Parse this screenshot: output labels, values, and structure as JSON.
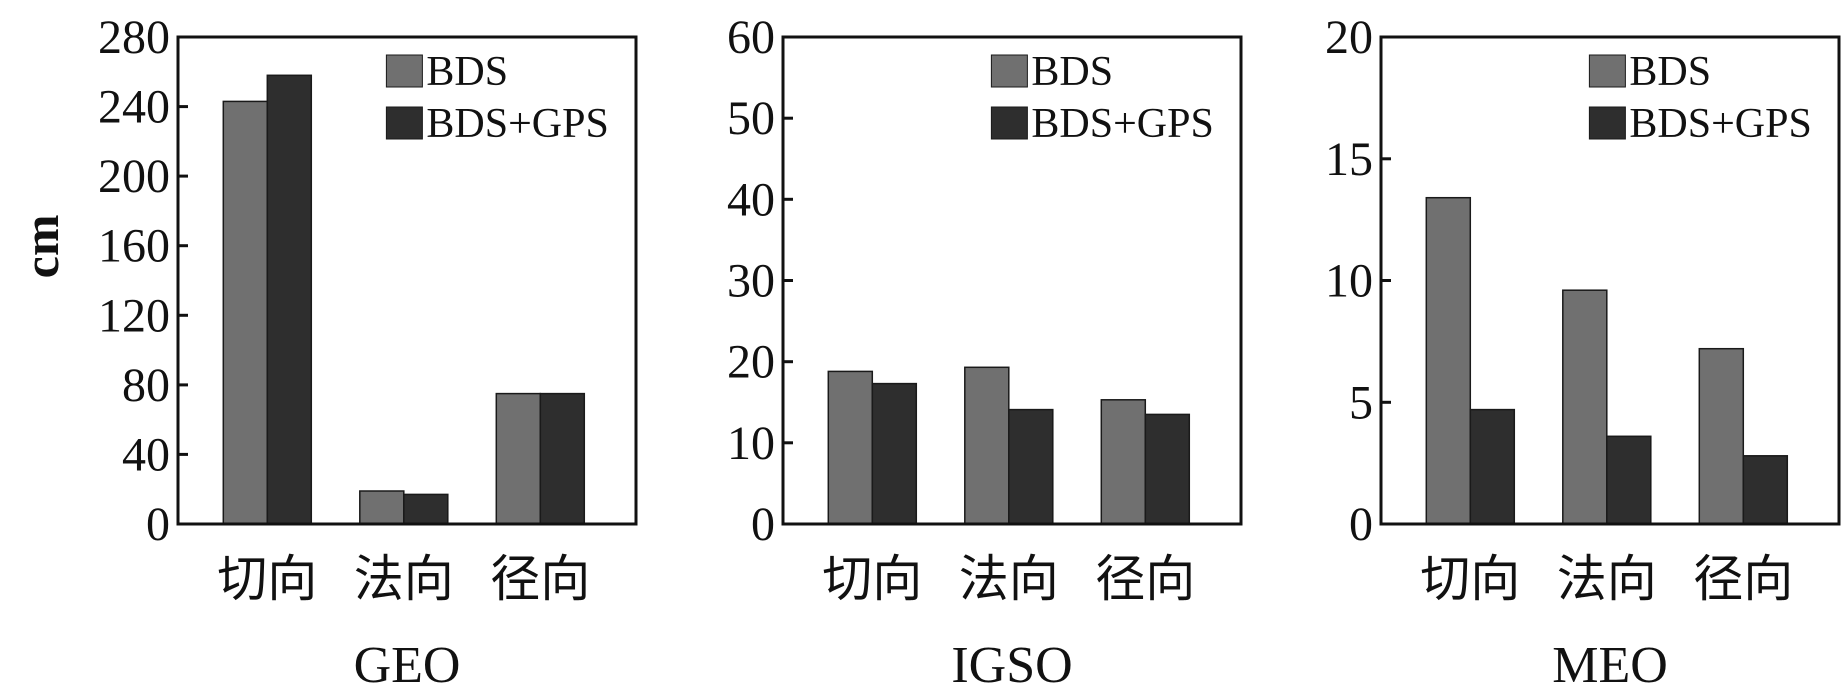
{
  "chart_data": [
    {
      "type": "bar",
      "title": "GEO",
      "xlabel": "GEO",
      "ylabel": "cm",
      "categories": [
        "切向",
        "法向",
        "径向"
      ],
      "series": [
        {
          "name": "BDS",
          "values": [
            243,
            19,
            75
          ],
          "color": "#707070"
        },
        {
          "name": "BDS+GPS",
          "values": [
            258,
            17,
            75
          ],
          "color": "#2e2e2e"
        }
      ],
      "ylim": [
        0,
        280
      ],
      "yticks": [
        "0",
        "40",
        "80",
        "120",
        "160",
        "200",
        "240",
        "280"
      ],
      "legend": "top-right",
      "grid": false
    },
    {
      "type": "bar",
      "title": "IGSO",
      "xlabel": "IGSO",
      "ylabel": "",
      "categories": [
        "切向",
        "法向",
        "径向"
      ],
      "series": [
        {
          "name": "BDS",
          "values": [
            18.8,
            19.3,
            15.3
          ],
          "color": "#707070"
        },
        {
          "name": "BDS+GPS",
          "values": [
            17.3,
            14.1,
            13.5
          ],
          "color": "#2e2e2e"
        }
      ],
      "ylim": [
        0,
        60
      ],
      "yticks": [
        "0",
        "10",
        "20",
        "30",
        "40",
        "50",
        "60"
      ],
      "legend": "top-right",
      "grid": false
    },
    {
      "type": "bar",
      "title": "MEO",
      "xlabel": "MEO",
      "ylabel": "",
      "categories": [
        "切向",
        "法向",
        "径向"
      ],
      "series": [
        {
          "name": "BDS",
          "values": [
            13.4,
            9.6,
            7.2
          ],
          "color": "#707070"
        },
        {
          "name": "BDS+GPS",
          "values": [
            4.7,
            3.6,
            2.8
          ],
          "color": "#2e2e2e"
        }
      ],
      "ylim": [
        0,
        20
      ],
      "yticks": [
        "0",
        "5",
        "10",
        "15",
        "20"
      ],
      "legend": "top-right",
      "grid": false
    }
  ]
}
